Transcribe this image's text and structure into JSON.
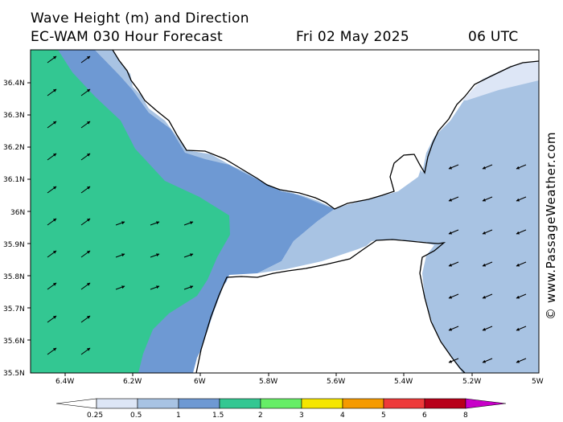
{
  "header": {
    "title": "Wave Height (m) and Direction",
    "model": "EC-WAM 030 Hour Forecast",
    "date": "Fri 02 May 2025",
    "time": "06 UTC"
  },
  "watermark": "© www.PassageWeather.com",
  "map": {
    "lat_labels": [
      "36.4N",
      "36.3N",
      "36.2N",
      "36.1N",
      "36N",
      "35.9N",
      "35.8N",
      "35.7N",
      "35.6N",
      "35.5N"
    ],
    "lon_labels": [
      "6.4W",
      "6.2W",
      "6W",
      "5.8W",
      "5.6W",
      "5.4W",
      "5.2W",
      "5W"
    ],
    "arrows_west": "northeast",
    "arrows_east": "southwest"
  },
  "legend": {
    "labels": [
      "0.25",
      "0.5",
      "1",
      "1.5",
      "2",
      "3",
      "4",
      "5",
      "6",
      "8"
    ],
    "colors": [
      "#ffffff",
      "#dde6f6",
      "#a8c3e3",
      "#6e99d3",
      "#33c792",
      "#66ee66",
      "#f5e600",
      "#f59a00",
      "#ee3a3a",
      "#b8001a",
      "#c800c8"
    ]
  }
}
